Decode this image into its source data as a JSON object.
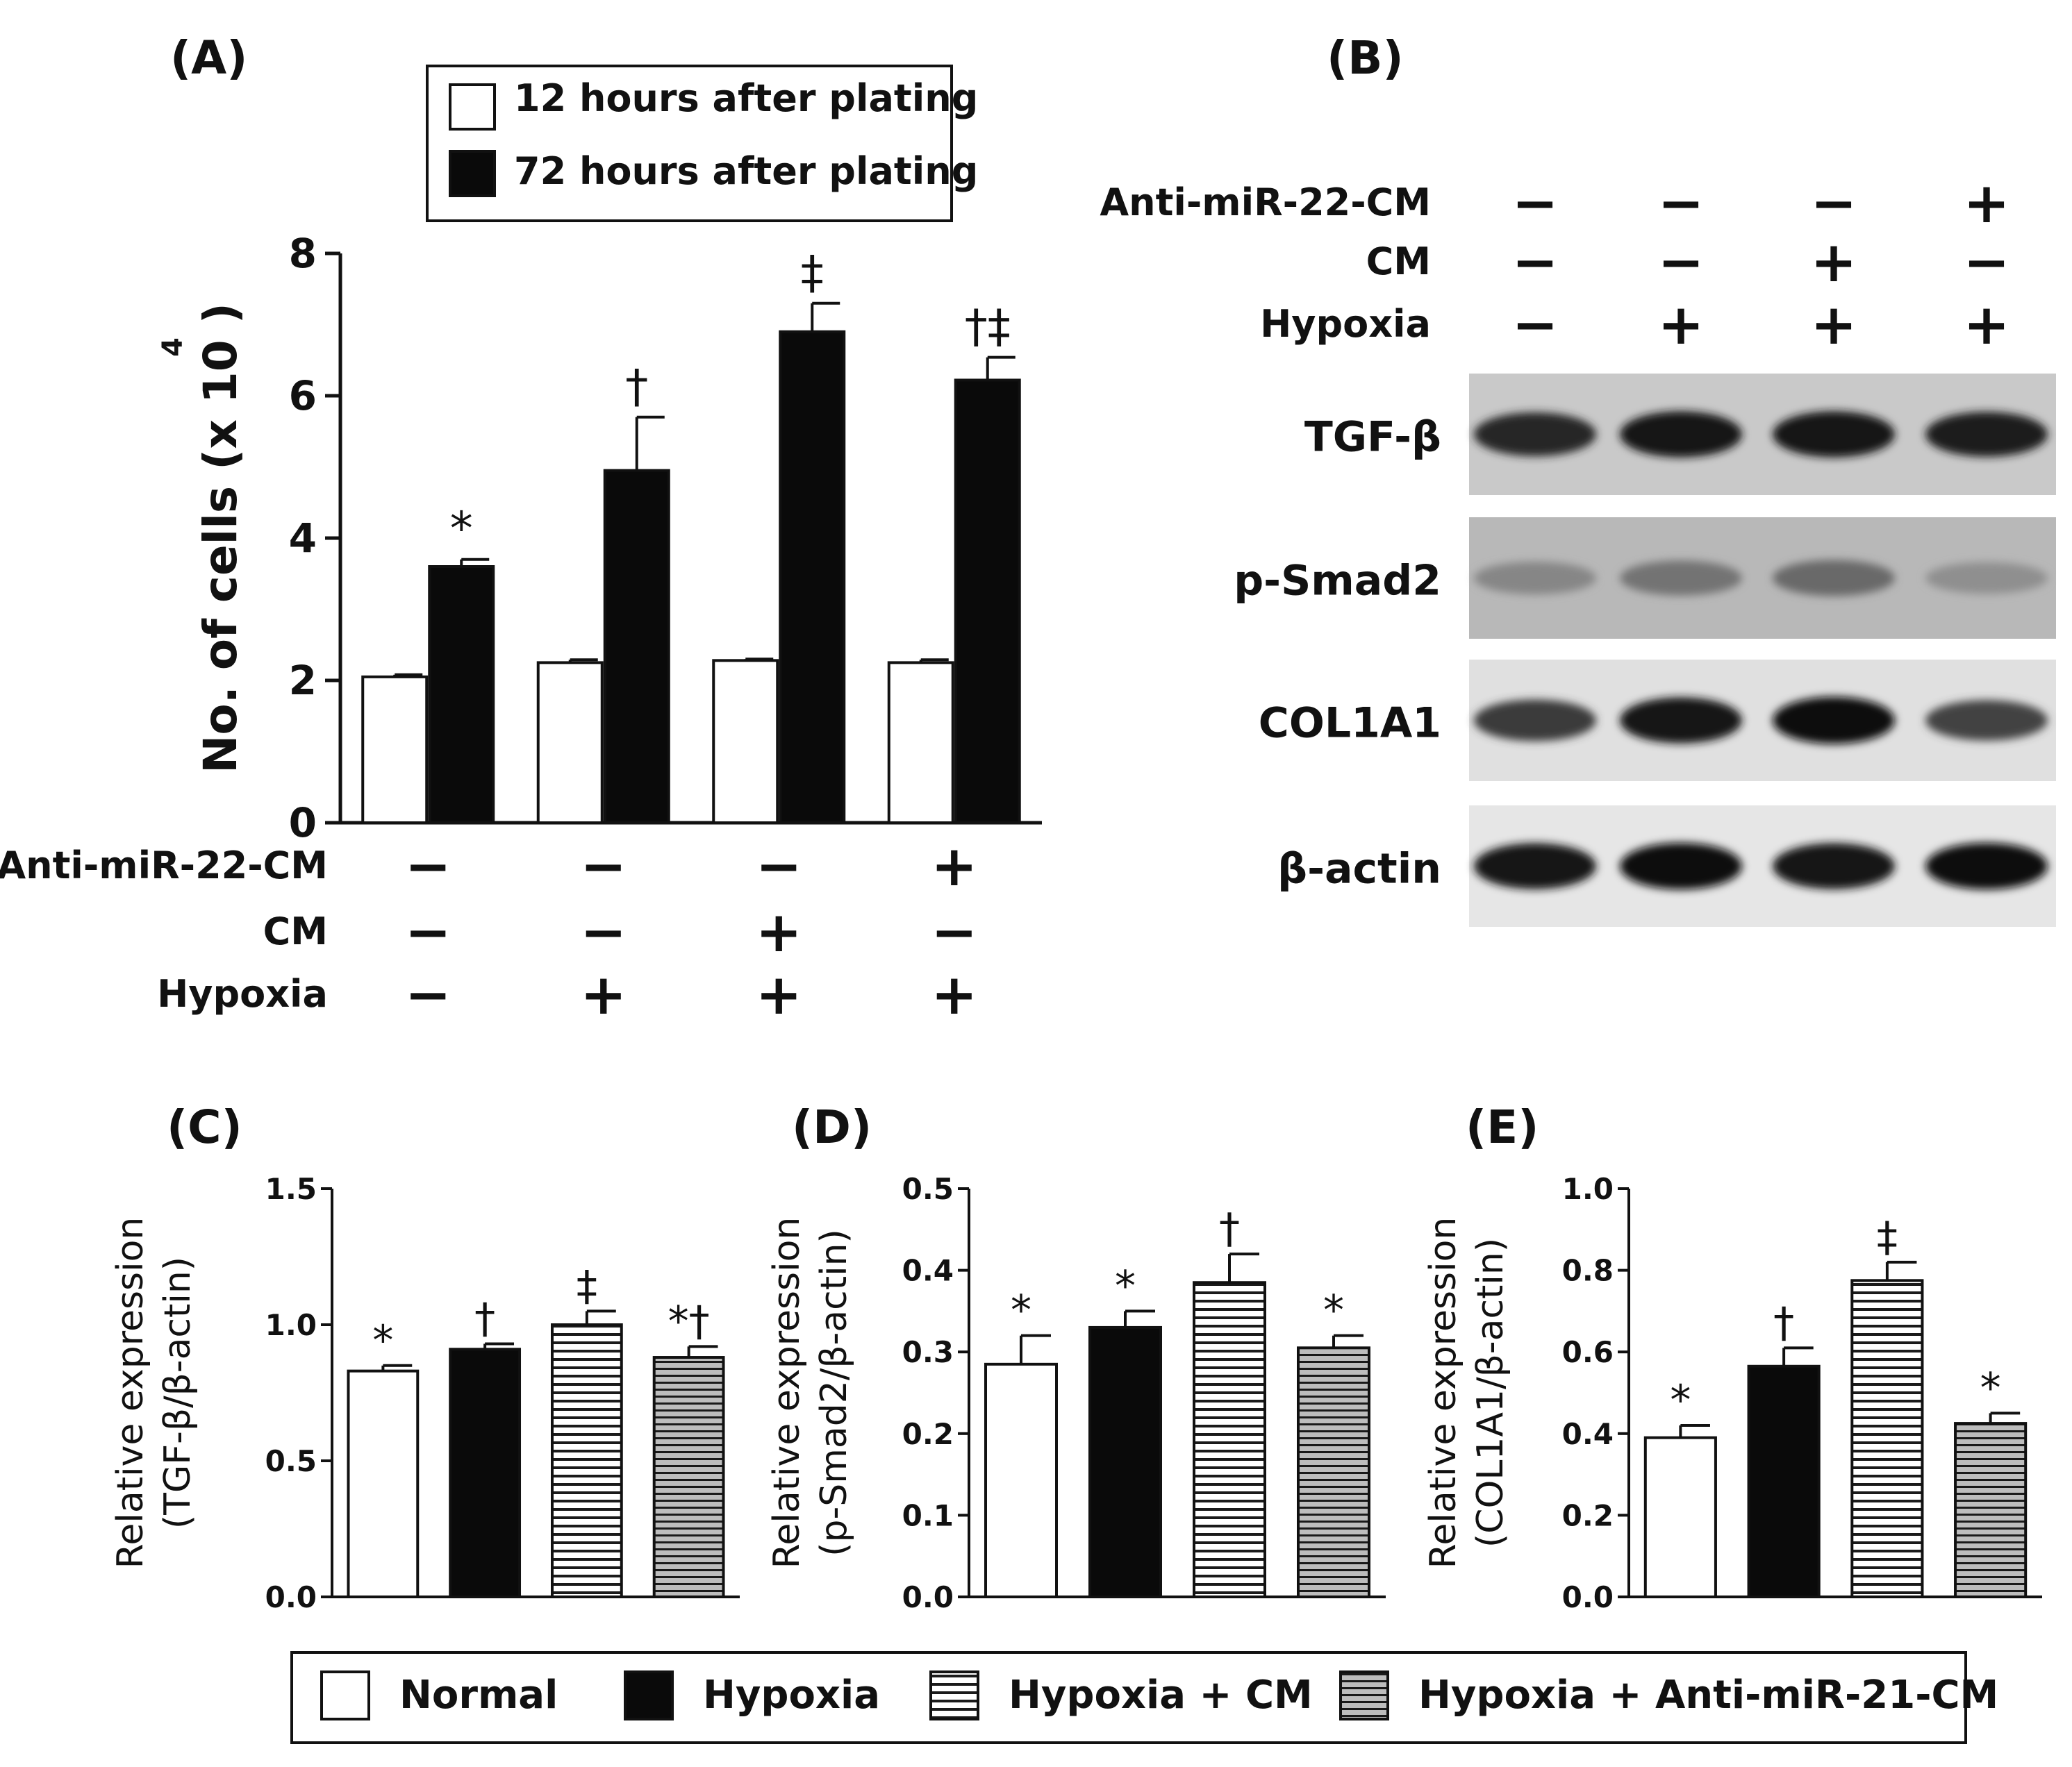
{
  "panel_labels": {
    "a": "(A)",
    "b": "(B)",
    "c": "(C)",
    "d": "(D)",
    "e": "(E)"
  },
  "conditions": {
    "row_labels": [
      "Anti-miR-22-CM",
      "CM",
      "Hypoxia"
    ],
    "rows": [
      [
        "−",
        "−",
        "−",
        "+"
      ],
      [
        "−",
        "−",
        "+",
        "−"
      ],
      [
        "−",
        "+",
        "+",
        "+"
      ]
    ]
  },
  "chart_data": [
    {
      "id": "A",
      "type": "bar",
      "title": "",
      "ylabel": "No. of cells (x 10 ⁴)",
      "ylabel_main": "No. of cells (x 10 )",
      "ylabel_exp": "4",
      "ylim": [
        0,
        8
      ],
      "yticks": [
        "0",
        "2",
        "4",
        "6",
        "8"
      ],
      "legend": [
        "12 hours after plating",
        "72 hours after plating"
      ],
      "legend_position": "top",
      "groups": 4,
      "series": [
        {
          "name": "12 hours after plating",
          "values": [
            2.05,
            2.25,
            2.28,
            2.25
          ],
          "errors": [
            0.03,
            0.04,
            0.02,
            0.04
          ],
          "fill": "white",
          "annotations": [
            "",
            "",
            "",
            ""
          ]
        },
        {
          "name": "72 hours after plating",
          "values": [
            3.6,
            4.95,
            6.9,
            6.22
          ],
          "errors": [
            0.1,
            0.75,
            0.4,
            0.32
          ],
          "fill": "black",
          "annotations": [
            "*",
            "†",
            "‡",
            "†‡"
          ]
        }
      ]
    },
    {
      "id": "C",
      "type": "bar",
      "ylabel_line1": "Relative expression",
      "ylabel_line2": "(TGF-β/β-actin)",
      "ylim": [
        0,
        1.5
      ],
      "yticks": [
        "0.0",
        "0.5",
        "1.0",
        "1.5"
      ],
      "categories": [
        "Normal",
        "Hypoxia",
        "Hypoxia + CM",
        "Hypoxia + Anti-miR-21-CM"
      ],
      "values": [
        0.83,
        0.91,
        1.0,
        0.88
      ],
      "errors": [
        0.02,
        0.02,
        0.05,
        0.04
      ],
      "annotations": [
        "*",
        "†",
        "‡",
        "*†"
      ]
    },
    {
      "id": "D",
      "type": "bar",
      "ylabel_line1": "Relative expression",
      "ylabel_line2": "(p-Smad2/β-actin)",
      "ylim": [
        0,
        0.5
      ],
      "yticks": [
        "0.0",
        "0.1",
        "0.2",
        "0.3",
        "0.4",
        "0.5"
      ],
      "categories": [
        "Normal",
        "Hypoxia",
        "Hypoxia + CM",
        "Hypoxia + Anti-miR-21-CM"
      ],
      "values": [
        0.285,
        0.33,
        0.385,
        0.305
      ],
      "errors": [
        0.035,
        0.02,
        0.035,
        0.015
      ],
      "annotations": [
        "*",
        "*",
        "†",
        "*"
      ]
    },
    {
      "id": "E",
      "type": "bar",
      "ylabel_line1": "Relative expression",
      "ylabel_line2": "(COL1A1/β-actin)",
      "ylim": [
        0,
        1.0
      ],
      "yticks": [
        "0.0",
        "0.2",
        "0.4",
        "0.6",
        "0.8",
        "1.0"
      ],
      "categories": [
        "Normal",
        "Hypoxia",
        "Hypoxia + CM",
        "Hypoxia + Anti-miR-21-CM"
      ],
      "values": [
        0.39,
        0.565,
        0.775,
        0.425
      ],
      "errors": [
        0.03,
        0.045,
        0.045,
        0.025
      ],
      "annotations": [
        "*",
        "†",
        "‡",
        "*"
      ]
    }
  ],
  "western_blot": {
    "bands": [
      {
        "label": "TGF-β",
        "intensity": [
          0.85,
          0.95,
          0.95,
          0.9
        ]
      },
      {
        "label": "p-Smad2",
        "intensity": [
          0.35,
          0.45,
          0.5,
          0.3
        ]
      },
      {
        "label": "COL1A1",
        "intensity": [
          0.75,
          0.95,
          1.0,
          0.7
        ]
      },
      {
        "label": "β-actin",
        "intensity": [
          0.95,
          0.98,
          0.95,
          0.98
        ]
      }
    ]
  },
  "bottom_legend": [
    "Normal",
    "Hypoxia",
    "Hypoxia + CM",
    "Hypoxia + Anti-miR-21-CM"
  ]
}
